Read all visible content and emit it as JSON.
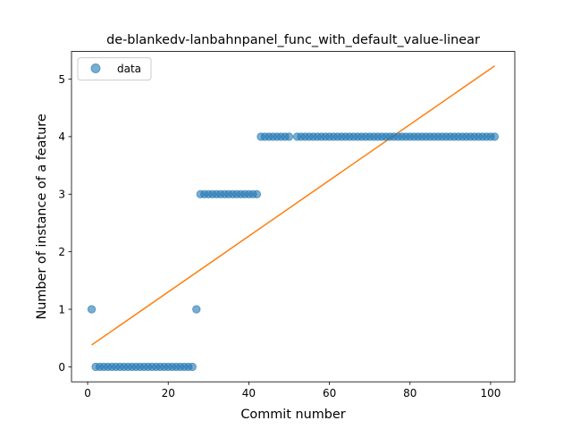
{
  "chart_data": {
    "type": "scatter",
    "title": "de-blankedv-lanbahnpanel_func_with_default_value-linear",
    "xlabel": "Commit number",
    "ylabel": "Number of instance of a feature",
    "xlim": [
      -4,
      106
    ],
    "ylim": [
      -0.26,
      5.48
    ],
    "xticks": [
      0,
      20,
      40,
      60,
      80,
      100
    ],
    "yticks": [
      0,
      1,
      2,
      3,
      4,
      5
    ],
    "grid": false,
    "legend": {
      "position": "top-left",
      "entries": [
        "data"
      ]
    },
    "colors": {
      "scatter": "#1f77b4",
      "fit": "#ff7f0e"
    },
    "series": [
      {
        "name": "data",
        "kind": "scatter",
        "points": [
          [
            1,
            1
          ],
          [
            2,
            0
          ],
          [
            3,
            0
          ],
          [
            4,
            0
          ],
          [
            5,
            0
          ],
          [
            6,
            0
          ],
          [
            7,
            0
          ],
          [
            8,
            0
          ],
          [
            9,
            0
          ],
          [
            10,
            0
          ],
          [
            11,
            0
          ],
          [
            12,
            0
          ],
          [
            13,
            0
          ],
          [
            14,
            0
          ],
          [
            15,
            0
          ],
          [
            16,
            0
          ],
          [
            17,
            0
          ],
          [
            18,
            0
          ],
          [
            19,
            0
          ],
          [
            20,
            0
          ],
          [
            21,
            0
          ],
          [
            22,
            0
          ],
          [
            23,
            0
          ],
          [
            24,
            0
          ],
          [
            25,
            0
          ],
          [
            26,
            0
          ],
          [
            27,
            1
          ],
          [
            28,
            3
          ],
          [
            29,
            3
          ],
          [
            30,
            3
          ],
          [
            31,
            3
          ],
          [
            32,
            3
          ],
          [
            33,
            3
          ],
          [
            34,
            3
          ],
          [
            35,
            3
          ],
          [
            36,
            3
          ],
          [
            37,
            3
          ],
          [
            38,
            3
          ],
          [
            39,
            3
          ],
          [
            40,
            3
          ],
          [
            41,
            3
          ],
          [
            42,
            3
          ],
          [
            43,
            4
          ],
          [
            44,
            4
          ],
          [
            45,
            4
          ],
          [
            46,
            4
          ],
          [
            47,
            4
          ],
          [
            48,
            4
          ],
          [
            49,
            4
          ],
          [
            50,
            4
          ],
          [
            52,
            4
          ],
          [
            53,
            4
          ],
          [
            54,
            4
          ],
          [
            55,
            4
          ],
          [
            56,
            4
          ],
          [
            57,
            4
          ],
          [
            58,
            4
          ],
          [
            59,
            4
          ],
          [
            60,
            4
          ],
          [
            61,
            4
          ],
          [
            62,
            4
          ],
          [
            63,
            4
          ],
          [
            64,
            4
          ],
          [
            65,
            4
          ],
          [
            66,
            4
          ],
          [
            67,
            4
          ],
          [
            68,
            4
          ],
          [
            69,
            4
          ],
          [
            70,
            4
          ],
          [
            71,
            4
          ],
          [
            72,
            4
          ],
          [
            73,
            4
          ],
          [
            74,
            4
          ],
          [
            75,
            4
          ],
          [
            76,
            4
          ],
          [
            77,
            4
          ],
          [
            78,
            4
          ],
          [
            79,
            4
          ],
          [
            80,
            4
          ],
          [
            81,
            4
          ],
          [
            82,
            4
          ],
          [
            83,
            4
          ],
          [
            84,
            4
          ],
          [
            85,
            4
          ],
          [
            86,
            4
          ],
          [
            87,
            4
          ],
          [
            88,
            4
          ],
          [
            89,
            4
          ],
          [
            90,
            4
          ],
          [
            91,
            4
          ],
          [
            92,
            4
          ],
          [
            93,
            4
          ],
          [
            94,
            4
          ],
          [
            95,
            4
          ],
          [
            96,
            4
          ],
          [
            97,
            4
          ],
          [
            98,
            4
          ],
          [
            99,
            4
          ],
          [
            100,
            4
          ],
          [
            101,
            4
          ]
        ]
      },
      {
        "kind": "line",
        "points": [
          [
            1,
            0.38
          ],
          [
            101,
            5.23
          ]
        ]
      }
    ]
  }
}
